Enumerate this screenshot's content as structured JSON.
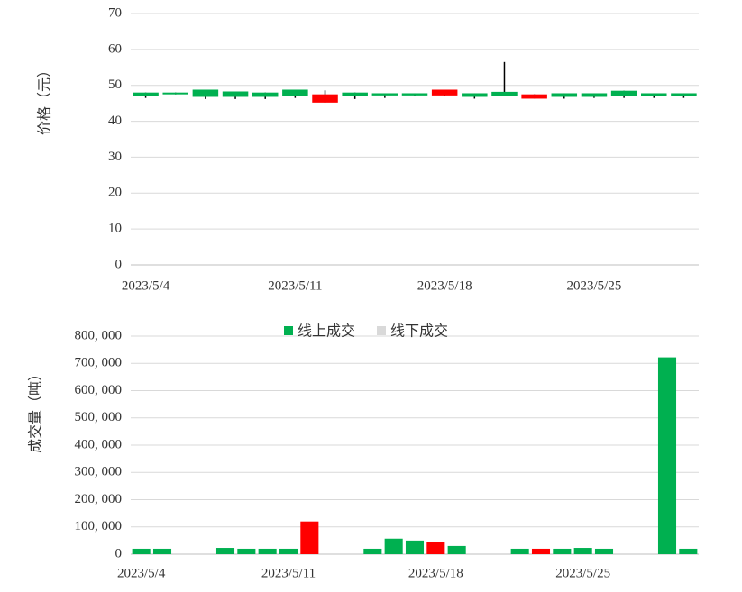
{
  "chart_data": [
    {
      "type": "candlestick",
      "ylabel": "价格（元）",
      "x": [
        "2023/5/4",
        "2023/5/5",
        "2023/5/8",
        "2023/5/9",
        "2023/5/10",
        "2023/5/11",
        "2023/5/12",
        "2023/5/15",
        "2023/5/16",
        "2023/5/17",
        "2023/5/18",
        "2023/5/19",
        "2023/5/22",
        "2023/5/23",
        "2023/5/24",
        "2023/5/25",
        "2023/5/26",
        "2023/5/29",
        "2023/5/30"
      ],
      "xticks": [
        "2023/5/4",
        "2023/5/11",
        "2023/5/18",
        "2023/5/25"
      ],
      "open": [
        47.0,
        47.5,
        46.8,
        46.8,
        46.8,
        47.0,
        47.5,
        47.0,
        47.2,
        47.2,
        48.8,
        46.8,
        47.0,
        47.5,
        46.8,
        46.8,
        47.0,
        47.0,
        47.0
      ],
      "close": [
        48.0,
        48.0,
        48.8,
        48.3,
        48.0,
        48.8,
        45.2,
        48.0,
        47.8,
        47.8,
        47.2,
        47.8,
        48.2,
        46.3,
        47.8,
        47.8,
        48.5,
        47.8,
        47.8
      ],
      "low": [
        46.5,
        47.5,
        46.2,
        46.2,
        46.2,
        46.5,
        45.2,
        46.2,
        46.5,
        47.0,
        47.0,
        46.3,
        47.0,
        46.3,
        46.3,
        46.5,
        46.5,
        46.5,
        46.5
      ],
      "high": [
        48.0,
        48.0,
        48.8,
        48.3,
        48.0,
        48.8,
        48.6,
        48.0,
        47.8,
        47.8,
        48.8,
        47.8,
        56.5,
        47.5,
        47.8,
        47.8,
        48.5,
        47.8,
        47.8
      ],
      "up_color": "#00b050",
      "down_color": "#ff0000",
      "ylim": [
        0,
        70
      ],
      "yticks": [
        0,
        10,
        20,
        30,
        40,
        50,
        60,
        70
      ],
      "grid": true
    },
    {
      "type": "bar",
      "ylabel": "成交量（吨）",
      "x": [
        "2023/5/4",
        "2023/5/5",
        "2023/5/8",
        "2023/5/9",
        "2023/5/10",
        "2023/5/11",
        "2023/5/12",
        "2023/5/15",
        "2023/5/16",
        "2023/5/17",
        "2023/5/18",
        "2023/5/19",
        "2023/5/22",
        "2023/5/23",
        "2023/5/24",
        "2023/5/25",
        "2023/5/26",
        "2023/5/29",
        "2023/5/30"
      ],
      "xticks": [
        "2023/5/4",
        "2023/5/11",
        "2023/5/18",
        "2023/5/25"
      ],
      "ylim": [
        0,
        800000
      ],
      "yticks": [
        {
          "value": 0,
          "label": "0"
        },
        {
          "value": 100000,
          "label": "100, 000"
        },
        {
          "value": 200000,
          "label": "200, 000"
        },
        {
          "value": 300000,
          "label": "300, 000"
        },
        {
          "value": 400000,
          "label": "400, 000"
        },
        {
          "value": 500000,
          "label": "500, 000"
        },
        {
          "value": 600000,
          "label": "600, 000"
        },
        {
          "value": 700000,
          "label": "700, 000"
        },
        {
          "value": 800000,
          "label": "800, 000"
        }
      ],
      "grid": true,
      "legend": "top",
      "series": [
        {
          "name": "线上成交",
          "color": "#00b050",
          "colors": [
            "#00b050",
            "#00b050",
            "#00b050",
            "#00b050",
            "#00b050",
            "#00b050",
            "#ff0000",
            "#00b050",
            "#00b050",
            "#00b050",
            "#ff0000",
            "#00b050",
            "#00b050",
            "#ff0000",
            "#00b050",
            "#00b050",
            "#00b050",
            "#00b050",
            "#00b050"
          ],
          "values": [
            20000,
            20000,
            23000,
            20000,
            20000,
            20000,
            120000,
            20000,
            57000,
            50000,
            46000,
            30000,
            20000,
            20000,
            20000,
            23000,
            20000,
            722000,
            20000
          ]
        },
        {
          "name": "线下成交",
          "color": "#d9d9d9",
          "values": [
            0,
            0,
            0,
            0,
            0,
            0,
            0,
            0,
            0,
            0,
            0,
            0,
            0,
            0,
            0,
            0,
            0,
            0,
            0
          ]
        }
      ]
    }
  ]
}
